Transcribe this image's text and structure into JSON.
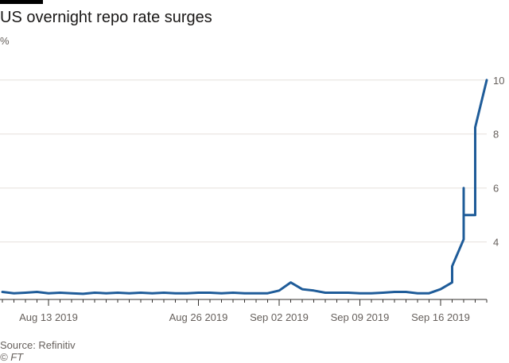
{
  "header": {
    "title": "US overnight repo rate surges",
    "unit": "%"
  },
  "footer": {
    "source": "Source: Refinitiv",
    "copyright": "© FT"
  },
  "colors": {
    "line": "#1f5c99",
    "grid": "#e6e0dc",
    "axis": "#33302e",
    "brand": "#000000"
  },
  "chart_data": {
    "type": "line",
    "title": "US overnight repo rate surges",
    "ylabel": "%",
    "xlabel": "",
    "ylim": [
      1.9,
      10.2
    ],
    "y_ticks": [
      4,
      6,
      8,
      10
    ],
    "grid": true,
    "legend": "none",
    "xlim": [
      "2019-08-09",
      "2019-09-20"
    ],
    "x_ticks": [
      {
        "date": "2019-08-13",
        "label": "Aug 13 2019"
      },
      {
        "date": "2019-08-26",
        "label": "Aug 26 2019"
      },
      {
        "date": "2019-09-02",
        "label": "Sep 02 2019"
      },
      {
        "date": "2019-09-09",
        "label": "Sep 09 2019"
      },
      {
        "date": "2019-09-16",
        "label": "Sep 16 2019"
      }
    ],
    "series": [
      {
        "points": [
          [
            "2019-08-09",
            2.15
          ],
          [
            "2019-08-10",
            2.1
          ],
          [
            "2019-08-11",
            2.12
          ],
          [
            "2019-08-12",
            2.15
          ],
          [
            "2019-08-13",
            2.1
          ],
          [
            "2019-08-14",
            2.12
          ],
          [
            "2019-08-15",
            2.1
          ],
          [
            "2019-08-16",
            2.08
          ],
          [
            "2019-08-17",
            2.12
          ],
          [
            "2019-08-18",
            2.1
          ],
          [
            "2019-08-19",
            2.12
          ],
          [
            "2019-08-20",
            2.1
          ],
          [
            "2019-08-21",
            2.12
          ],
          [
            "2019-08-22",
            2.1
          ],
          [
            "2019-08-23",
            2.12
          ],
          [
            "2019-08-24",
            2.1
          ],
          [
            "2019-08-25",
            2.1
          ],
          [
            "2019-08-26",
            2.12
          ],
          [
            "2019-08-27",
            2.12
          ],
          [
            "2019-08-28",
            2.1
          ],
          [
            "2019-08-29",
            2.12
          ],
          [
            "2019-08-30",
            2.1
          ],
          [
            "2019-08-31",
            2.1
          ],
          [
            "2019-09-01",
            2.1
          ],
          [
            "2019-09-02",
            2.2
          ],
          [
            "2019-09-03",
            2.5
          ],
          [
            "2019-09-04",
            2.25
          ],
          [
            "2019-09-05",
            2.2
          ],
          [
            "2019-09-06",
            2.12
          ],
          [
            "2019-09-07",
            2.12
          ],
          [
            "2019-09-08",
            2.12
          ],
          [
            "2019-09-09",
            2.1
          ],
          [
            "2019-09-10",
            2.1
          ],
          [
            "2019-09-11",
            2.12
          ],
          [
            "2019-09-12",
            2.15
          ],
          [
            "2019-09-13",
            2.15
          ],
          [
            "2019-09-14",
            2.1
          ],
          [
            "2019-09-15",
            2.1
          ],
          [
            "2019-09-16",
            2.25
          ],
          [
            "2019-09-17",
            2.5
          ],
          [
            "2019-09-17",
            2.95
          ],
          [
            "2019-09-17",
            3.1
          ],
          [
            "2019-09-18",
            4.1
          ],
          [
            "2019-09-18",
            6.0
          ],
          [
            "2019-09-18",
            5.0
          ],
          [
            "2019-09-19",
            5.0
          ],
          [
            "2019-09-19",
            8.0
          ],
          [
            "2019-09-19",
            8.25
          ],
          [
            "2019-09-20",
            10.0
          ]
        ]
      }
    ]
  }
}
